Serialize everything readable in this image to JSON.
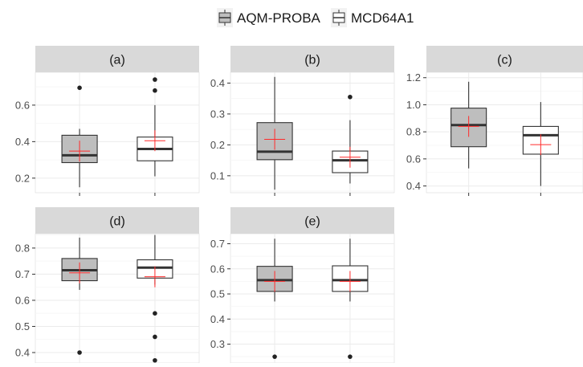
{
  "legend": {
    "items": [
      {
        "label": "AQM-PROBA",
        "fill": "#bebebe"
      },
      {
        "label": "MCD64A1",
        "fill": "#ffffff"
      }
    ]
  },
  "colors": {
    "panel_bg": "#ffffff",
    "strip_bg": "#d9d9d9",
    "grid_major": "#ebebeb",
    "grid_minor": "#f5f5f5",
    "mean_marker": "#ff2a2a",
    "median": "#333333"
  },
  "chart_data": [
    {
      "type": "box",
      "label": "(a)",
      "yticks": [
        0.2,
        0.4,
        0.6
      ],
      "ylim": [
        0.12,
        0.78
      ],
      "series": [
        {
          "name": "AQM-PROBA",
          "min": 0.15,
          "q1": 0.285,
          "median": 0.325,
          "q3": 0.435,
          "max": 0.47,
          "mean": 0.348,
          "outliers": [
            0.695
          ]
        },
        {
          "name": "MCD64A1",
          "min": 0.21,
          "q1": 0.295,
          "median": 0.36,
          "q3": 0.425,
          "max": 0.6,
          "mean": 0.405,
          "outliers": [
            0.68,
            0.74
          ]
        }
      ]
    },
    {
      "type": "box",
      "label": "(b)",
      "yticks": [
        0.1,
        0.2,
        0.3,
        0.4
      ],
      "ylim": [
        0.045,
        0.435
      ],
      "series": [
        {
          "name": "AQM-PROBA",
          "min": 0.055,
          "q1": 0.152,
          "median": 0.178,
          "q3": 0.272,
          "max": 0.42,
          "mean": 0.218,
          "outliers": []
        },
        {
          "name": "MCD64A1",
          "min": 0.075,
          "q1": 0.11,
          "median": 0.15,
          "q3": 0.18,
          "max": 0.28,
          "mean": 0.16,
          "outliers": [
            0.355
          ]
        }
      ]
    },
    {
      "type": "box",
      "label": "(c)",
      "yticks": [
        0.4,
        0.6,
        0.8,
        1.0,
        1.2
      ],
      "ylim": [
        0.35,
        1.24
      ],
      "series": [
        {
          "name": "AQM-PROBA",
          "min": 0.53,
          "q1": 0.69,
          "median": 0.85,
          "q3": 0.975,
          "max": 1.17,
          "mean": 0.84,
          "outliers": []
        },
        {
          "name": "MCD64A1",
          "min": 0.4,
          "q1": 0.635,
          "median": 0.775,
          "q3": 0.84,
          "max": 1.02,
          "mean": 0.705,
          "outliers": []
        }
      ]
    },
    {
      "type": "box",
      "label": "(d)",
      "yticks": [
        0.4,
        0.5,
        0.6,
        0.7,
        0.8
      ],
      "ylim": [
        0.36,
        0.855
      ],
      "series": [
        {
          "name": "AQM-PROBA",
          "min": 0.64,
          "q1": 0.675,
          "median": 0.715,
          "q3": 0.76,
          "max": 0.84,
          "mean": 0.705,
          "outliers": [
            0.4
          ]
        },
        {
          "name": "MCD64A1",
          "min": 0.66,
          "q1": 0.685,
          "median": 0.725,
          "q3": 0.755,
          "max": 0.85,
          "mean": 0.69,
          "outliers": [
            0.55,
            0.46,
            0.37
          ]
        }
      ]
    },
    {
      "type": "box",
      "label": "(e)",
      "yticks": [
        0.3,
        0.4,
        0.5,
        0.6,
        0.7
      ],
      "ylim": [
        0.225,
        0.74
      ],
      "series": [
        {
          "name": "AQM-PROBA",
          "min": 0.47,
          "q1": 0.51,
          "median": 0.555,
          "q3": 0.61,
          "max": 0.72,
          "mean": 0.55,
          "outliers": [
            0.25
          ]
        },
        {
          "name": "MCD64A1",
          "min": 0.47,
          "q1": 0.51,
          "median": 0.555,
          "q3": 0.612,
          "max": 0.72,
          "mean": 0.55,
          "outliers": [
            0.25
          ]
        }
      ]
    }
  ]
}
